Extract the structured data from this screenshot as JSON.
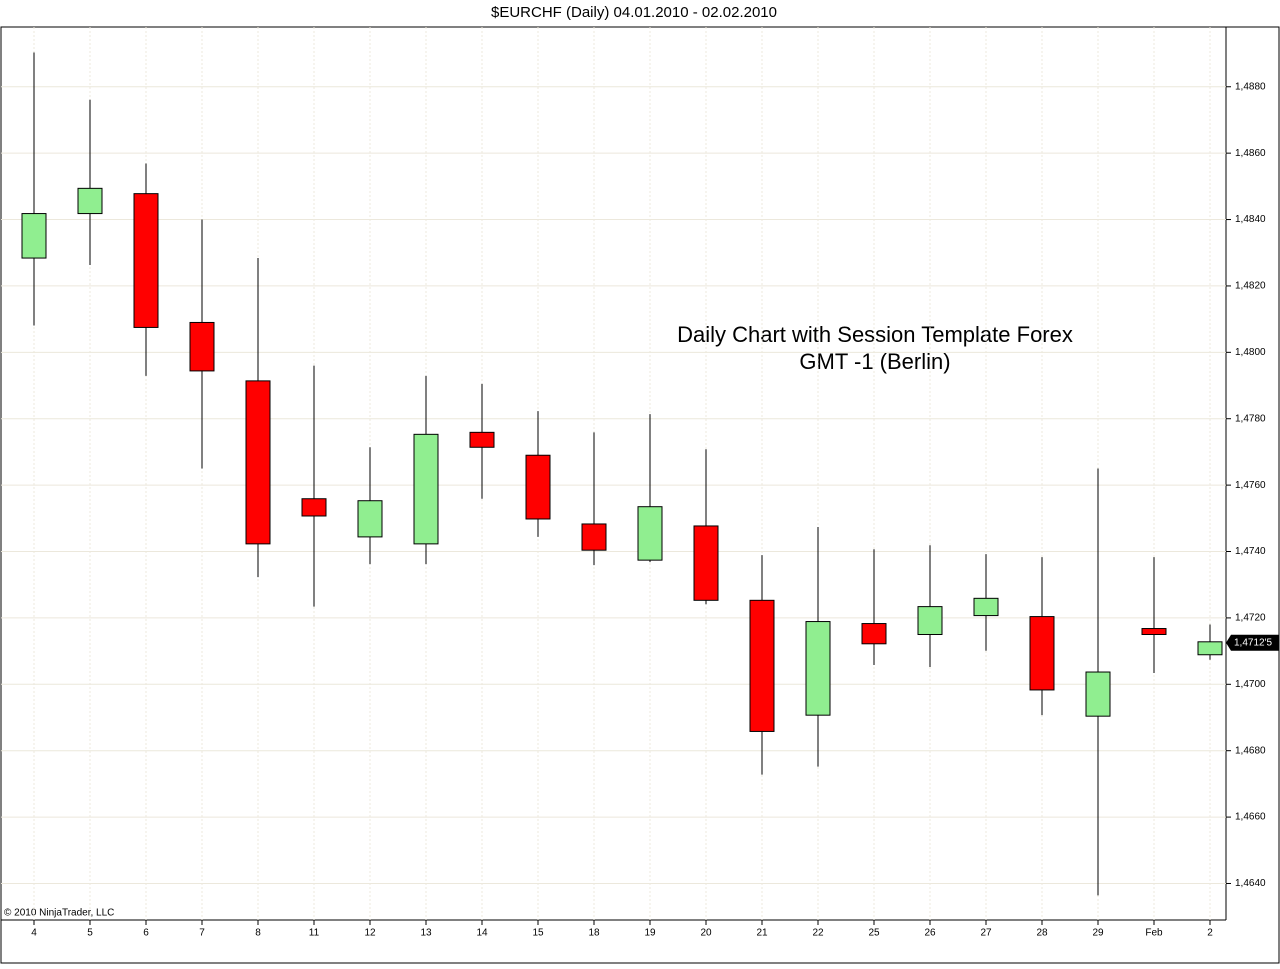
{
  "chart_data": {
    "type": "candlestick",
    "title": "$EURCHF (Daily)  04.01.2010 - 02.02.2010",
    "annotation": [
      "Daily Chart with Session Template Forex",
      "GMT -1 (Berlin)"
    ],
    "copyright": "© 2010 NinjaTrader, LLC",
    "categories": [
      "4",
      "5",
      "6",
      "7",
      "8",
      "11",
      "12",
      "13",
      "14",
      "15",
      "18",
      "19",
      "20",
      "21",
      "22",
      "25",
      "26",
      "27",
      "28",
      "29",
      "Feb",
      "2"
    ],
    "open": [
      1.48284,
      1.48418,
      1.48478,
      1.4809,
      1.47914,
      1.47559,
      1.47444,
      1.47423,
      1.47759,
      1.4769,
      1.47483,
      1.47374,
      1.47477,
      1.47253,
      1.46907,
      1.47183,
      1.4715,
      1.47207,
      1.47204,
      1.46904,
      1.47168,
      1.47089
    ],
    "high": [
      1.48903,
      1.48761,
      1.48569,
      1.484,
      1.48284,
      1.4796,
      1.47714,
      1.47929,
      1.47905,
      1.47823,
      1.47759,
      1.47814,
      1.47708,
      1.47389,
      1.47474,
      1.47407,
      1.47419,
      1.47392,
      1.47383,
      1.4765,
      1.47383,
      1.4718
    ],
    "low": [
      1.48081,
      1.48263,
      1.47929,
      1.4765,
      1.47323,
      1.47234,
      1.47362,
      1.47362,
      1.47559,
      1.47444,
      1.47359,
      1.47368,
      1.47241,
      1.46728,
      1.46752,
      1.47058,
      1.47052,
      1.47101,
      1.46907,
      1.46364,
      1.47034,
      1.47074
    ],
    "close": [
      1.48418,
      1.48494,
      1.48075,
      1.47944,
      1.47423,
      1.47507,
      1.47553,
      1.47753,
      1.47714,
      1.47498,
      1.47404,
      1.47535,
      1.47253,
      1.46858,
      1.47189,
      1.47122,
      1.47234,
      1.47259,
      1.46983,
      1.47037,
      1.4715,
      1.47128
    ],
    "up_color": "#90ee90",
    "down_color": "#ff0000",
    "ylim": [
      1.4629,
      1.4898
    ],
    "yticks": [
      {
        "value": 1.464,
        "label": "1,4640"
      },
      {
        "value": 1.466,
        "label": "1,4660"
      },
      {
        "value": 1.468,
        "label": "1,4680"
      },
      {
        "value": 1.47,
        "label": "1,4700"
      },
      {
        "value": 1.472,
        "label": "1,4720"
      },
      {
        "value": 1.474,
        "label": "1,4740"
      },
      {
        "value": 1.476,
        "label": "1,4760"
      },
      {
        "value": 1.478,
        "label": "1,4780"
      },
      {
        "value": 1.48,
        "label": "1,4800"
      },
      {
        "value": 1.482,
        "label": "1,4820"
      },
      {
        "value": 1.484,
        "label": "1,4840"
      },
      {
        "value": 1.486,
        "label": "1,4860"
      },
      {
        "value": 1.488,
        "label": "1,4880"
      }
    ],
    "last_price": {
      "value": 1.47125,
      "label": "1,4712'5"
    },
    "grid": true
  }
}
